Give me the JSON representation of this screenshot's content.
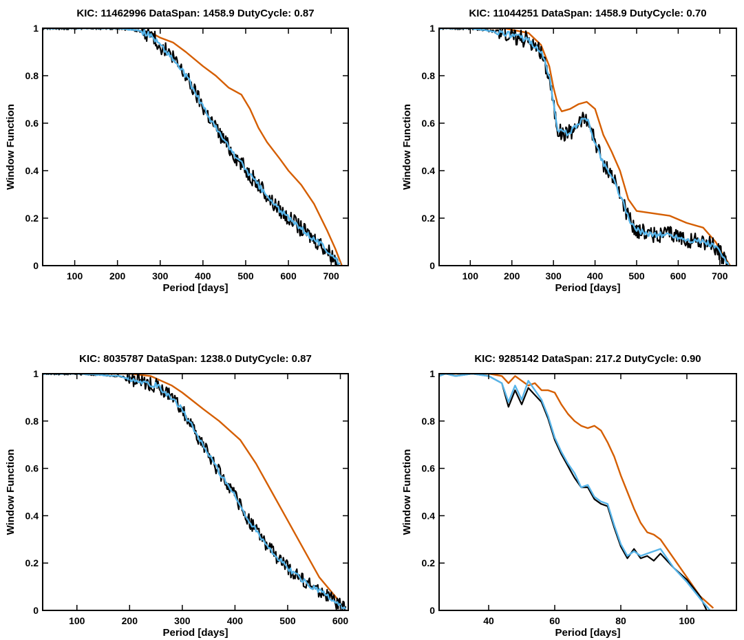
{
  "colors": {
    "black": "#000000",
    "blue": "#56b4e9",
    "orange": "#d55e00"
  },
  "chart_data": [
    {
      "type": "line",
      "title": "KIC: 11462996 DataSpan: 1458.9 DutyCycle: 0.87",
      "xlabel": "Period [days]",
      "ylabel": "Window Function",
      "xlim": [
        25,
        740
      ],
      "ylim": [
        0,
        1
      ],
      "xticks": [
        100,
        200,
        300,
        400,
        500,
        600,
        700
      ],
      "yticks": [
        0,
        0.2,
        0.4,
        0.6,
        0.8,
        1
      ],
      "grid": false,
      "series": [
        {
          "color": "#d55e00",
          "noise": 0,
          "x": [
            25,
            100,
            200,
            250,
            280,
            300,
            330,
            360,
            400,
            430,
            460,
            490,
            510,
            530,
            550,
            580,
            600,
            630,
            660,
            690,
            710,
            725
          ],
          "y": [
            1,
            1,
            1,
            0.99,
            0.98,
            0.96,
            0.94,
            0.9,
            0.84,
            0.8,
            0.75,
            0.72,
            0.66,
            0.58,
            0.52,
            0.45,
            0.4,
            0.34,
            0.26,
            0.15,
            0.07,
            0
          ]
        },
        {
          "color": "#000000",
          "noise": 0.035,
          "x": [
            25,
            100,
            200,
            250,
            280,
            300,
            330,
            360,
            400,
            430,
            460,
            490,
            520,
            560,
            600,
            640,
            670,
            700,
            720
          ],
          "y": [
            1,
            1,
            1,
            0.99,
            0.97,
            0.93,
            0.87,
            0.8,
            0.67,
            0.58,
            0.5,
            0.43,
            0.36,
            0.27,
            0.2,
            0.14,
            0.1,
            0.05,
            0
          ]
        },
        {
          "color": "#56b4e9",
          "noise": 0.012,
          "x": [
            25,
            100,
            200,
            250,
            280,
            300,
            330,
            360,
            400,
            430,
            460,
            490,
            520,
            560,
            600,
            640,
            670,
            700,
            722
          ],
          "y": [
            1,
            1,
            1,
            0.99,
            0.97,
            0.93,
            0.87,
            0.8,
            0.67,
            0.58,
            0.5,
            0.43,
            0.36,
            0.27,
            0.2,
            0.14,
            0.1,
            0.05,
            0
          ]
        }
      ]
    },
    {
      "type": "line",
      "title": "KIC: 11044251 DataSpan: 1458.9 DutyCycle: 0.70",
      "xlabel": "Period [days]",
      "ylabel": "Window Function",
      "xlim": [
        25,
        740
      ],
      "ylim": [
        0,
        1
      ],
      "xticks": [
        100,
        200,
        300,
        400,
        500,
        600,
        700
      ],
      "yticks": [
        0,
        0.2,
        0.4,
        0.6,
        0.8,
        1
      ],
      "grid": false,
      "series": [
        {
          "color": "#d55e00",
          "noise": 0,
          "x": [
            25,
            100,
            180,
            240,
            270,
            290,
            300,
            310,
            320,
            340,
            360,
            380,
            400,
            420,
            440,
            460,
            480,
            500,
            540,
            580,
            620,
            660,
            690,
            710,
            725
          ],
          "y": [
            1,
            1,
            1,
            0.98,
            0.93,
            0.84,
            0.75,
            0.68,
            0.65,
            0.66,
            0.68,
            0.69,
            0.66,
            0.55,
            0.48,
            0.4,
            0.28,
            0.23,
            0.22,
            0.21,
            0.18,
            0.16,
            0.1,
            0.04,
            0
          ]
        },
        {
          "color": "#000000",
          "noise": 0.035,
          "x": [
            25,
            100,
            180,
            240,
            270,
            290,
            300,
            310,
            320,
            340,
            360,
            380,
            400,
            420,
            440,
            460,
            480,
            500,
            540,
            580,
            620,
            660,
            690,
            710,
            720
          ],
          "y": [
            1,
            1,
            0.98,
            0.95,
            0.9,
            0.8,
            0.68,
            0.58,
            0.56,
            0.56,
            0.6,
            0.62,
            0.52,
            0.43,
            0.38,
            0.3,
            0.2,
            0.15,
            0.13,
            0.13,
            0.11,
            0.1,
            0.08,
            0.03,
            0
          ]
        },
        {
          "color": "#56b4e9",
          "noise": 0.012,
          "x": [
            25,
            100,
            180,
            240,
            270,
            290,
            300,
            310,
            320,
            340,
            360,
            380,
            400,
            420,
            440,
            460,
            480,
            500,
            540,
            580,
            620,
            660,
            690,
            710,
            722
          ],
          "y": [
            1,
            1,
            0.98,
            0.95,
            0.9,
            0.8,
            0.68,
            0.58,
            0.56,
            0.56,
            0.6,
            0.62,
            0.52,
            0.43,
            0.38,
            0.3,
            0.2,
            0.15,
            0.13,
            0.13,
            0.11,
            0.1,
            0.08,
            0.03,
            0
          ]
        }
      ]
    },
    {
      "type": "line",
      "title": "KIC: 8035787 DataSpan: 1238.0 DutyCycle: 0.87",
      "xlabel": "Period [days]",
      "ylabel": "Window Function",
      "xlim": [
        35,
        615
      ],
      "ylim": [
        0,
        1
      ],
      "xticks": [
        100,
        200,
        300,
        400,
        500,
        600
      ],
      "yticks": [
        0,
        0.2,
        0.4,
        0.6,
        0.8,
        1
      ],
      "grid": false,
      "series": [
        {
          "color": "#d55e00",
          "noise": 0,
          "x": [
            35,
            100,
            200,
            240,
            260,
            280,
            300,
            340,
            370,
            390,
            410,
            440,
            470,
            500,
            530,
            560,
            590,
            610
          ],
          "y": [
            1,
            1,
            1,
            0.99,
            0.97,
            0.95,
            0.92,
            0.85,
            0.8,
            0.76,
            0.72,
            0.62,
            0.5,
            0.38,
            0.26,
            0.14,
            0.06,
            0
          ]
        },
        {
          "color": "#000000",
          "noise": 0.03,
          "x": [
            35,
            100,
            180,
            220,
            250,
            280,
            300,
            330,
            360,
            390,
            420,
            450,
            480,
            510,
            540,
            570,
            600,
            610
          ],
          "y": [
            1,
            1,
            0.99,
            0.97,
            0.95,
            0.9,
            0.85,
            0.73,
            0.62,
            0.52,
            0.4,
            0.31,
            0.22,
            0.16,
            0.11,
            0.07,
            0.02,
            0
          ]
        },
        {
          "color": "#56b4e9",
          "noise": 0.012,
          "x": [
            35,
            100,
            180,
            220,
            250,
            280,
            300,
            330,
            360,
            390,
            420,
            450,
            480,
            510,
            540,
            570,
            600,
            610
          ],
          "y": [
            1,
            1,
            0.99,
            0.97,
            0.95,
            0.9,
            0.85,
            0.73,
            0.62,
            0.52,
            0.4,
            0.31,
            0.22,
            0.16,
            0.11,
            0.07,
            0.02,
            0
          ]
        }
      ]
    },
    {
      "type": "line",
      "title": "KIC: 9285142 DataSpan:  217.2 DutyCycle: 0.90",
      "xlabel": "Period [days]",
      "ylabel": "Window Function",
      "xlim": [
        25,
        115
      ],
      "ylim": [
        0,
        1
      ],
      "xticks": [
        40,
        60,
        80,
        100
      ],
      "yticks": [
        0,
        0.2,
        0.4,
        0.6,
        0.8,
        1
      ],
      "grid": false,
      "series": [
        {
          "color": "#d55e00",
          "noise": 0,
          "x": [
            25,
            40,
            44,
            46,
            48,
            50,
            52,
            54,
            56,
            58,
            60,
            62,
            64,
            66,
            68,
            70,
            72,
            74,
            76,
            78,
            80,
            82,
            84,
            86,
            88,
            90,
            92,
            94,
            96,
            100,
            104,
            108
          ],
          "y": [
            1,
            1,
            0.99,
            0.96,
            0.99,
            0.97,
            0.95,
            0.96,
            0.93,
            0.93,
            0.92,
            0.87,
            0.83,
            0.8,
            0.78,
            0.77,
            0.78,
            0.76,
            0.71,
            0.65,
            0.57,
            0.5,
            0.43,
            0.37,
            0.33,
            0.32,
            0.3,
            0.26,
            0.22,
            0.14,
            0.06,
            0.01
          ]
        },
        {
          "color": "#000000",
          "noise": 0,
          "x": [
            25,
            27,
            30,
            35,
            40,
            44,
            46,
            48,
            50,
            52,
            54,
            56,
            58,
            60,
            62,
            64,
            66,
            68,
            70,
            72,
            74,
            76,
            78,
            80,
            82,
            84,
            86,
            88,
            90,
            92,
            94,
            96,
            100,
            104,
            106
          ],
          "y": [
            0.99,
            1,
            0.99,
            1,
            0.99,
            0.96,
            0.86,
            0.93,
            0.87,
            0.94,
            0.91,
            0.88,
            0.81,
            0.72,
            0.66,
            0.61,
            0.56,
            0.52,
            0.52,
            0.47,
            0.45,
            0.44,
            0.35,
            0.27,
            0.22,
            0.26,
            0.22,
            0.23,
            0.21,
            0.24,
            0.21,
            0.18,
            0.13,
            0.06,
            0
          ]
        },
        {
          "color": "#56b4e9",
          "noise": 0,
          "x": [
            25,
            27,
            30,
            35,
            40,
            44,
            46,
            48,
            50,
            52,
            54,
            56,
            58,
            60,
            62,
            64,
            66,
            68,
            70,
            72,
            74,
            76,
            78,
            80,
            82,
            84,
            86,
            88,
            90,
            92,
            94,
            96,
            100,
            104,
            107
          ],
          "y": [
            0.99,
            1,
            0.99,
            1,
            0.99,
            0.96,
            0.88,
            0.95,
            0.89,
            0.97,
            0.93,
            0.89,
            0.82,
            0.73,
            0.67,
            0.62,
            0.58,
            0.52,
            0.53,
            0.48,
            0.46,
            0.45,
            0.36,
            0.28,
            0.23,
            0.25,
            0.23,
            0.24,
            0.25,
            0.26,
            0.22,
            0.18,
            0.12,
            0.05,
            0
          ]
        }
      ]
    }
  ]
}
